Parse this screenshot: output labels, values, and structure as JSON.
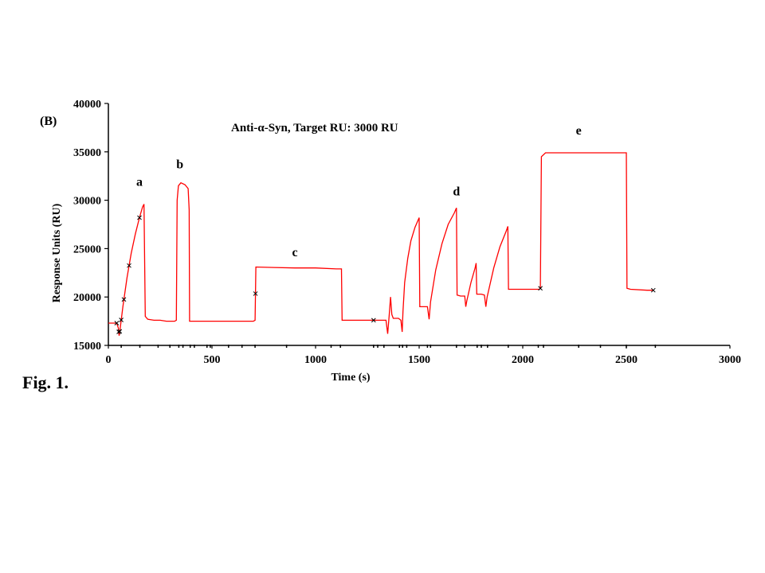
{
  "figure_caption": "Fig. 1.",
  "chart_data": {
    "type": "line",
    "panel_label": "(B)",
    "title": "Anti-α-Syn, Target RU: 3000 RU",
    "xlabel": "Time (s)",
    "ylabel": "Response Units (RU)",
    "xlim": [
      0,
      3000
    ],
    "ylim": [
      15000,
      40000
    ],
    "xticks": [
      0,
      500,
      1000,
      1500,
      2000,
      2500,
      3000
    ],
    "yticks": [
      15000,
      20000,
      25000,
      30000,
      35000,
      40000
    ],
    "grid": false,
    "series_color": "#ff0000",
    "series": [
      {
        "points": [
          [
            0,
            17300
          ],
          [
            40,
            17300
          ],
          [
            48,
            16800
          ],
          [
            52,
            16000
          ],
          [
            56,
            16600
          ],
          [
            70,
            19000
          ],
          [
            90,
            22000
          ],
          [
            110,
            24500
          ],
          [
            130,
            26500
          ],
          [
            150,
            28200
          ],
          [
            165,
            29300
          ],
          [
            172,
            29600
          ],
          [
            178,
            18000
          ],
          [
            190,
            17700
          ],
          [
            220,
            17600
          ],
          [
            250,
            17600
          ],
          [
            280,
            17500
          ],
          [
            320,
            17500
          ],
          [
            328,
            17600
          ],
          [
            332,
            30000
          ],
          [
            338,
            31500
          ],
          [
            350,
            31800
          ],
          [
            370,
            31600
          ],
          [
            385,
            31200
          ],
          [
            390,
            29000
          ],
          [
            392,
            17500
          ],
          [
            450,
            17500
          ],
          [
            550,
            17500
          ],
          [
            650,
            17500
          ],
          [
            700,
            17500
          ],
          [
            708,
            17600
          ],
          [
            712,
            23100
          ],
          [
            800,
            23050
          ],
          [
            900,
            23000
          ],
          [
            1000,
            23000
          ],
          [
            1100,
            22900
          ],
          [
            1125,
            22900
          ],
          [
            1128,
            17600
          ],
          [
            1200,
            17600
          ],
          [
            1300,
            17600
          ],
          [
            1340,
            17600
          ],
          [
            1348,
            16200
          ],
          [
            1355,
            18000
          ],
          [
            1362,
            20000
          ],
          [
            1368,
            18200
          ],
          [
            1375,
            17800
          ],
          [
            1400,
            17800
          ],
          [
            1412,
            17600
          ],
          [
            1418,
            16400
          ],
          [
            1422,
            18500
          ],
          [
            1430,
            21500
          ],
          [
            1445,
            24000
          ],
          [
            1460,
            25800
          ],
          [
            1480,
            27200
          ],
          [
            1500,
            28200
          ],
          [
            1503,
            19000
          ],
          [
            1520,
            19000
          ],
          [
            1540,
            19000
          ],
          [
            1548,
            17700
          ],
          [
            1555,
            19500
          ],
          [
            1580,
            22800
          ],
          [
            1610,
            25500
          ],
          [
            1640,
            27500
          ],
          [
            1670,
            28700
          ],
          [
            1680,
            29200
          ],
          [
            1683,
            20200
          ],
          [
            1700,
            20100
          ],
          [
            1720,
            20100
          ],
          [
            1725,
            19000
          ],
          [
            1730,
            19600
          ],
          [
            1750,
            21500
          ],
          [
            1770,
            23000
          ],
          [
            1775,
            23500
          ],
          [
            1778,
            20300
          ],
          [
            1800,
            20300
          ],
          [
            1815,
            20200
          ],
          [
            1822,
            19000
          ],
          [
            1828,
            20000
          ],
          [
            1860,
            23000
          ],
          [
            1890,
            25200
          ],
          [
            1920,
            26800
          ],
          [
            1928,
            27300
          ],
          [
            1931,
            20800
          ],
          [
            2000,
            20800
          ],
          [
            2080,
            20800
          ],
          [
            2085,
            20900
          ],
          [
            2090,
            34500
          ],
          [
            2110,
            34900
          ],
          [
            2200,
            34900
          ],
          [
            2300,
            34900
          ],
          [
            2400,
            34900
          ],
          [
            2500,
            34900
          ],
          [
            2503,
            20900
          ],
          [
            2520,
            20800
          ],
          [
            2600,
            20700
          ],
          [
            2630,
            20700
          ]
        ]
      }
    ],
    "markers_x": [
      40,
      50,
      55,
      62,
      75,
      100,
      150,
      710,
      1280,
      2085,
      2630
    ],
    "minor_ticks_x": [
      62,
      152,
      240,
      297,
      340,
      360,
      395,
      415,
      476,
      492,
      580,
      645,
      708,
      860,
      1075,
      1120,
      1280,
      1300,
      1330,
      1405,
      1420,
      1440,
      1540,
      1555,
      1680,
      1720,
      1780,
      1800,
      1830,
      1930,
      2075,
      2100,
      2270,
      2375,
      2500,
      2640
    ],
    "annotations": [
      {
        "text": "a",
        "x": 150,
        "y": 31500
      },
      {
        "text": "b",
        "x": 345,
        "y": 33300
      },
      {
        "text": "c",
        "x": 900,
        "y": 24200
      },
      {
        "text": "d",
        "x": 1680,
        "y": 30500
      },
      {
        "text": "e",
        "x": 2270,
        "y": 36800
      }
    ]
  }
}
